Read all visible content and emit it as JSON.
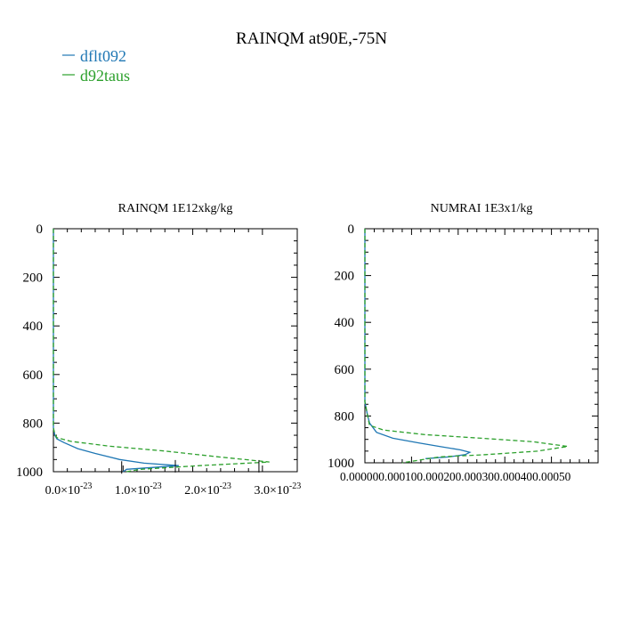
{
  "figure": {
    "title": "RAINQM at90E,-75N",
    "legend": [
      {
        "name": "dflt092",
        "color": "#1f77b4",
        "dash": "solid"
      },
      {
        "name": "d92taus",
        "color": "#2ca02c",
        "dash": "dashed"
      }
    ],
    "legend_position": "top-left"
  },
  "chart_data": [
    {
      "type": "line",
      "title": "RAINQM  1E12xkg/kg",
      "y_axis": "inverted",
      "ylim": [
        1000,
        0
      ],
      "yticks": [
        0,
        200,
        400,
        600,
        800,
        1000
      ],
      "ytick_labels": [
        "0",
        "200",
        "400",
        "600",
        "800",
        "1000"
      ],
      "xlim": [
        0,
        3.5
      ],
      "xticks": [
        0,
        1,
        2,
        3
      ],
      "xtick_labels": [
        {
          "mantissa": "0.0",
          "exp": "-23"
        },
        {
          "mantissa": "1.0",
          "exp": "-23"
        },
        {
          "mantissa": "2.0",
          "exp": "-23"
        },
        {
          "mantissa": "3.0",
          "exp": "-23"
        }
      ],
      "x_scale_note": "x values in units of 1e-23",
      "series": [
        {
          "name": "dflt092",
          "color": "#1f77b4",
          "dash": "solid",
          "x": [
            0,
            0,
            0,
            0.02,
            0.05,
            0.15,
            0.35,
            0.6,
            0.95,
            1.3,
            1.8,
            1.05,
            1.0
          ],
          "y": [
            0,
            700,
            820,
            850,
            865,
            880,
            905,
            925,
            950,
            965,
            975,
            990,
            1000
          ]
        },
        {
          "name": "d92taus",
          "color": "#2ca02c",
          "dash": "dashed",
          "x": [
            0,
            0,
            0,
            0.02,
            0.05,
            0.25,
            0.8,
            1.6,
            2.4,
            3.1,
            2.1,
            1.25,
            1.05
          ],
          "y": [
            0,
            700,
            820,
            845,
            860,
            875,
            895,
            915,
            940,
            960,
            975,
            990,
            1000
          ]
        }
      ],
      "markers": [
        {
          "x": 0.98,
          "y": 990
        },
        {
          "x": 1.75,
          "y": 985
        },
        {
          "x": 2.95,
          "y": 985
        }
      ]
    },
    {
      "type": "line",
      "title": "NUMRAI  1E3x1/kg",
      "y_axis": "inverted",
      "ylim": [
        1000,
        0
      ],
      "yticks": [
        0,
        200,
        400,
        600,
        800,
        1000
      ],
      "ytick_labels": [
        "0",
        "200",
        "400",
        "600",
        "800",
        "1000"
      ],
      "xlim": [
        0,
        0.0005
      ],
      "xticks": [
        0,
        0.0001,
        0.0002,
        0.0003,
        0.0004,
        0.0005
      ],
      "xtick_labels_joined": "0.000000.000100.000200.000300.000400.00050",
      "series": [
        {
          "name": "dflt092",
          "color": "#1f77b4",
          "dash": "solid",
          "x": [
            0,
            0,
            5e-06,
            1e-05,
            2.5e-05,
            6e-05,
            0.000115,
            0.00016,
            0.000205,
            0.000225,
            0.000215,
            0.00018,
            0.00013
          ],
          "y": [
            0,
            740,
            790,
            830,
            870,
            895,
            915,
            930,
            945,
            955,
            965,
            975,
            982
          ]
        },
        {
          "name": "d92taus",
          "color": "#2ca02c",
          "dash": "dashed",
          "x": [
            0,
            0,
            5e-06,
            1e-05,
            4e-05,
            0.00013,
            0.00025,
            0.00036,
            0.000435,
            0.00037,
            0.00026,
            0.00016,
            8e-05
          ],
          "y": [
            0,
            740,
            790,
            840,
            860,
            880,
            895,
            910,
            930,
            950,
            965,
            975,
            1000
          ]
        }
      ]
    }
  ]
}
